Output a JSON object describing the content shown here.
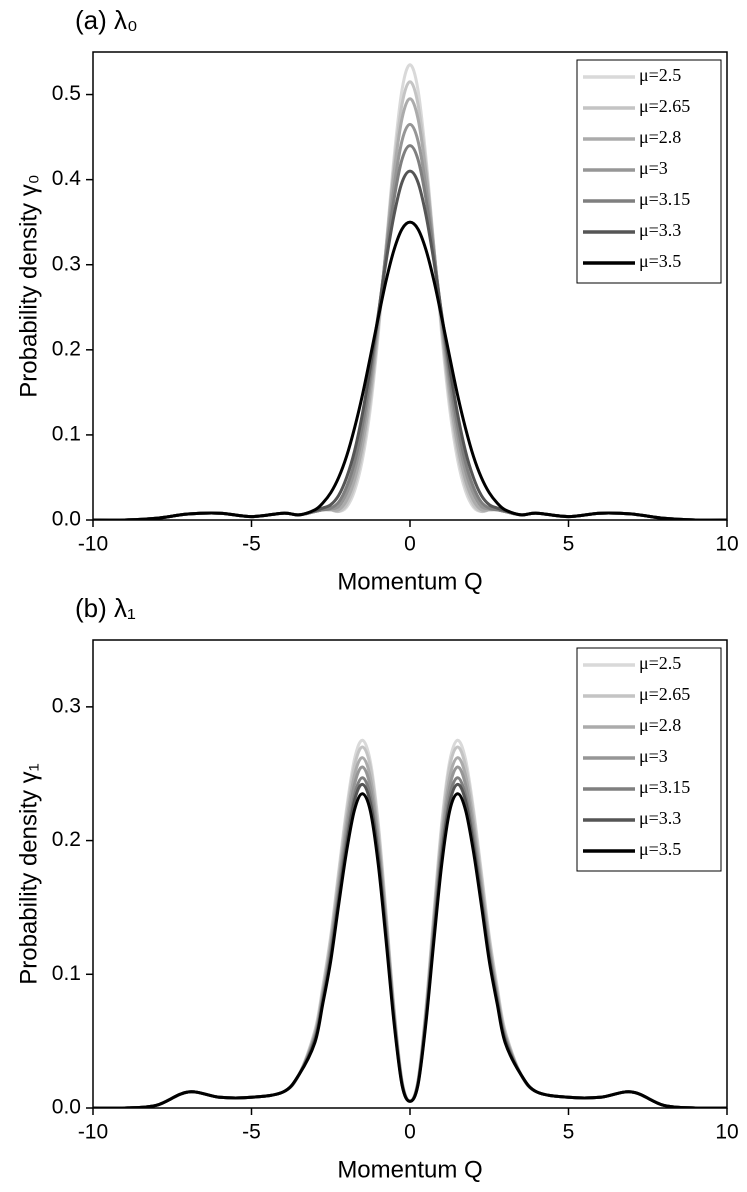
{
  "chart_data": [
    {
      "type": "line",
      "title": "(a) λ₀",
      "xlabel": "Momentum Q",
      "ylabel": "Probability density γ₀",
      "x": [
        -10,
        -9,
        -8,
        -7,
        -6,
        -5,
        -4,
        -3.5,
        -3,
        -2.75,
        -2.5,
        -2.25,
        -2,
        -1.75,
        -1.5,
        -1.25,
        -1,
        -0.75,
        -0.5,
        -0.25,
        0,
        0.25,
        0.5,
        0.75,
        1,
        1.25,
        1.5,
        1.75,
        2,
        2.25,
        2.5,
        2.75,
        3,
        3.5,
        4,
        5,
        6,
        7,
        8,
        9,
        10
      ],
      "xlim": [
        -10,
        10
      ],
      "xticks": [
        -10,
        -5,
        0,
        5,
        10
      ],
      "ylim": [
        0,
        0.55
      ],
      "yticks": [
        {
          "value": 0,
          "label": "0.0"
        },
        0.1,
        0.2,
        0.3,
        0.4,
        0.5
      ],
      "legend": "upper right",
      "series": [
        {
          "name": "μ=2.5",
          "color": "#d9d9d9",
          "values": [
            0,
            0,
            0.002,
            0.007,
            0.008,
            0.004,
            0.008,
            0.006,
            0.01,
            0.012,
            0.012,
            0.01,
            0.015,
            0.034,
            0.071,
            0.131,
            0.218,
            0.323,
            0.427,
            0.506,
            0.535,
            0.506,
            0.427,
            0.323,
            0.218,
            0.131,
            0.071,
            0.034,
            0.015,
            0.01,
            0.012,
            0.012,
            0.01,
            0.006,
            0.008,
            0.004,
            0.008,
            0.007,
            0.002,
            0,
            0
          ]
        },
        {
          "name": "μ=2.65",
          "color": "#c4c4c4",
          "values": [
            0,
            0,
            0.002,
            0.007,
            0.008,
            0.004,
            0.008,
            0.006,
            0.01,
            0.012,
            0.012,
            0.01,
            0.018,
            0.04,
            0.079,
            0.14,
            0.224,
            0.322,
            0.418,
            0.489,
            0.515,
            0.489,
            0.418,
            0.322,
            0.224,
            0.14,
            0.079,
            0.04,
            0.018,
            0.01,
            0.012,
            0.012,
            0.01,
            0.006,
            0.008,
            0.004,
            0.008,
            0.007,
            0.002,
            0,
            0
          ]
        },
        {
          "name": "μ=2.8",
          "color": "#ababab",
          "values": [
            0,
            0,
            0.002,
            0.007,
            0.008,
            0.004,
            0.008,
            0.006,
            0.01,
            0.012,
            0.012,
            0.012,
            0.023,
            0.047,
            0.088,
            0.149,
            0.229,
            0.321,
            0.409,
            0.472,
            0.495,
            0.472,
            0.409,
            0.321,
            0.229,
            0.149,
            0.088,
            0.047,
            0.023,
            0.012,
            0.012,
            0.012,
            0.01,
            0.006,
            0.008,
            0.004,
            0.008,
            0.007,
            0.002,
            0,
            0
          ]
        },
        {
          "name": "μ=3",
          "color": "#969696",
          "values": [
            0,
            0,
            0.002,
            0.007,
            0.008,
            0.004,
            0.008,
            0.006,
            0.01,
            0.012,
            0.013,
            0.016,
            0.031,
            0.058,
            0.101,
            0.161,
            0.236,
            0.317,
            0.392,
            0.446,
            0.465,
            0.446,
            0.392,
            0.317,
            0.236,
            0.161,
            0.101,
            0.058,
            0.031,
            0.016,
            0.013,
            0.012,
            0.01,
            0.006,
            0.008,
            0.004,
            0.008,
            0.007,
            0.002,
            0,
            0
          ]
        },
        {
          "name": "μ=3.15",
          "color": "#7f7f7f",
          "values": [
            0,
            0,
            0.002,
            0.007,
            0.008,
            0.004,
            0.008,
            0.006,
            0.01,
            0.012,
            0.014,
            0.021,
            0.039,
            0.068,
            0.112,
            0.17,
            0.24,
            0.313,
            0.378,
            0.424,
            0.44,
            0.424,
            0.378,
            0.313,
            0.24,
            0.17,
            0.112,
            0.068,
            0.039,
            0.021,
            0.014,
            0.012,
            0.01,
            0.006,
            0.008,
            0.004,
            0.008,
            0.007,
            0.002,
            0,
            0
          ]
        },
        {
          "name": "μ=3.3",
          "color": "#555555",
          "values": [
            0,
            0,
            0.002,
            0.007,
            0.008,
            0.004,
            0.008,
            0.006,
            0.011,
            0.014,
            0.018,
            0.029,
            0.05,
            0.081,
            0.125,
            0.18,
            0.242,
            0.305,
            0.359,
            0.397,
            0.41,
            0.397,
            0.359,
            0.305,
            0.242,
            0.18,
            0.125,
            0.081,
            0.05,
            0.029,
            0.018,
            0.014,
            0.011,
            0.006,
            0.008,
            0.004,
            0.008,
            0.007,
            0.002,
            0,
            0
          ]
        },
        {
          "name": "μ=3.5",
          "color": "#000000",
          "values": [
            0,
            0,
            0.002,
            0.007,
            0.008,
            0.004,
            0.008,
            0.006,
            0.012,
            0.02,
            0.032,
            0.05,
            0.075,
            0.108,
            0.147,
            0.192,
            0.238,
            0.282,
            0.318,
            0.342,
            0.35,
            0.342,
            0.318,
            0.282,
            0.238,
            0.192,
            0.147,
            0.108,
            0.075,
            0.05,
            0.032,
            0.02,
            0.012,
            0.006,
            0.008,
            0.004,
            0.008,
            0.007,
            0.002,
            0,
            0
          ]
        }
      ]
    },
    {
      "type": "line",
      "title": "(b) λ₁",
      "xlabel": "Momentum Q",
      "ylabel": "Probability density γ₁",
      "x": [
        -10,
        -9,
        -8,
        -7,
        -6,
        -5,
        -4,
        -3.5,
        -3,
        -2.75,
        -2.5,
        -2.25,
        -2,
        -1.75,
        -1.5,
        -1.25,
        -1,
        -0.75,
        -0.5,
        -0.25,
        0,
        0.25,
        0.5,
        0.75,
        1,
        1.25,
        1.5,
        1.75,
        2,
        2.25,
        2.5,
        2.75,
        3,
        3.5,
        4,
        5,
        6,
        7,
        8,
        9,
        10
      ],
      "xlim": [
        -10,
        10
      ],
      "xticks": [
        -10,
        -5,
        0,
        5,
        10
      ],
      "ylim": [
        0,
        0.35
      ],
      "yticks": [
        {
          "value": 0,
          "label": "0.0"
        },
        0.1,
        0.2,
        0.3
      ],
      "legend": "upper right",
      "series": [
        {
          "name": "μ=2.5",
          "color": "#d9d9d9",
          "values": [
            0,
            0,
            0.002,
            0.012,
            0.008,
            0.008,
            0.012,
            0.025,
            0.058,
            0.091,
            0.129,
            0.177,
            0.224,
            0.261,
            0.275,
            0.259,
            0.213,
            0.145,
            0.074,
            0.02,
            0.005,
            0.02,
            0.074,
            0.145,
            0.213,
            0.259,
            0.275,
            0.261,
            0.224,
            0.177,
            0.129,
            0.091,
            0.058,
            0.025,
            0.012,
            0.008,
            0.008,
            0.012,
            0.002,
            0,
            0
          ]
        },
        {
          "name": "μ=2.65",
          "color": "#c4c4c4",
          "values": [
            0,
            0,
            0.002,
            0.012,
            0.008,
            0.008,
            0.012,
            0.025,
            0.057,
            0.089,
            0.127,
            0.174,
            0.22,
            0.256,
            0.27,
            0.255,
            0.209,
            0.143,
            0.073,
            0.02,
            0.005,
            0.02,
            0.073,
            0.143,
            0.209,
            0.255,
            0.27,
            0.256,
            0.22,
            0.174,
            0.127,
            0.089,
            0.057,
            0.025,
            0.012,
            0.008,
            0.008,
            0.012,
            0.002,
            0,
            0
          ]
        },
        {
          "name": "μ=2.8",
          "color": "#ababab",
          "values": [
            0,
            0,
            0.002,
            0.012,
            0.008,
            0.008,
            0.012,
            0.025,
            0.055,
            0.086,
            0.123,
            0.169,
            0.214,
            0.249,
            0.262,
            0.247,
            0.203,
            0.139,
            0.071,
            0.019,
            0.005,
            0.019,
            0.071,
            0.139,
            0.203,
            0.247,
            0.262,
            0.249,
            0.214,
            0.169,
            0.123,
            0.086,
            0.055,
            0.025,
            0.012,
            0.008,
            0.008,
            0.012,
            0.002,
            0,
            0
          ]
        },
        {
          "name": "μ=3",
          "color": "#969696",
          "values": [
            0,
            0,
            0.002,
            0.012,
            0.008,
            0.008,
            0.012,
            0.025,
            0.054,
            0.084,
            0.12,
            0.164,
            0.208,
            0.242,
            0.255,
            0.24,
            0.198,
            0.135,
            0.069,
            0.019,
            0.005,
            0.019,
            0.069,
            0.135,
            0.198,
            0.24,
            0.255,
            0.242,
            0.208,
            0.164,
            0.12,
            0.084,
            0.054,
            0.025,
            0.012,
            0.008,
            0.008,
            0.012,
            0.002,
            0,
            0
          ]
        },
        {
          "name": "μ=3.15",
          "color": "#7f7f7f",
          "values": [
            0,
            0,
            0.002,
            0.012,
            0.008,
            0.008,
            0.012,
            0.025,
            0.052,
            0.082,
            0.116,
            0.159,
            0.202,
            0.234,
            0.247,
            0.233,
            0.191,
            0.131,
            0.067,
            0.018,
            0.005,
            0.018,
            0.067,
            0.131,
            0.191,
            0.233,
            0.247,
            0.234,
            0.202,
            0.159,
            0.116,
            0.082,
            0.052,
            0.025,
            0.012,
            0.008,
            0.008,
            0.012,
            0.002,
            0,
            0
          ]
        },
        {
          "name": "μ=3.3",
          "color": "#555555",
          "values": [
            0,
            0,
            0.002,
            0.012,
            0.008,
            0.008,
            0.012,
            0.025,
            0.051,
            0.08,
            0.113,
            0.156,
            0.197,
            0.23,
            0.242,
            0.228,
            0.188,
            0.128,
            0.065,
            0.018,
            0.005,
            0.018,
            0.065,
            0.128,
            0.188,
            0.228,
            0.242,
            0.23,
            0.197,
            0.156,
            0.113,
            0.08,
            0.051,
            0.025,
            0.012,
            0.008,
            0.008,
            0.012,
            0.002,
            0,
            0
          ]
        },
        {
          "name": "μ=3.5",
          "color": "#000000",
          "values": [
            0,
            0,
            0.002,
            0.012,
            0.008,
            0.008,
            0.012,
            0.025,
            0.049,
            0.078,
            0.11,
            0.152,
            0.192,
            0.223,
            0.235,
            0.222,
            0.182,
            0.124,
            0.063,
            0.017,
            0.005,
            0.017,
            0.063,
            0.124,
            0.182,
            0.222,
            0.235,
            0.223,
            0.192,
            0.152,
            0.11,
            0.078,
            0.049,
            0.025,
            0.012,
            0.008,
            0.008,
            0.012,
            0.002,
            0,
            0
          ]
        }
      ]
    }
  ]
}
